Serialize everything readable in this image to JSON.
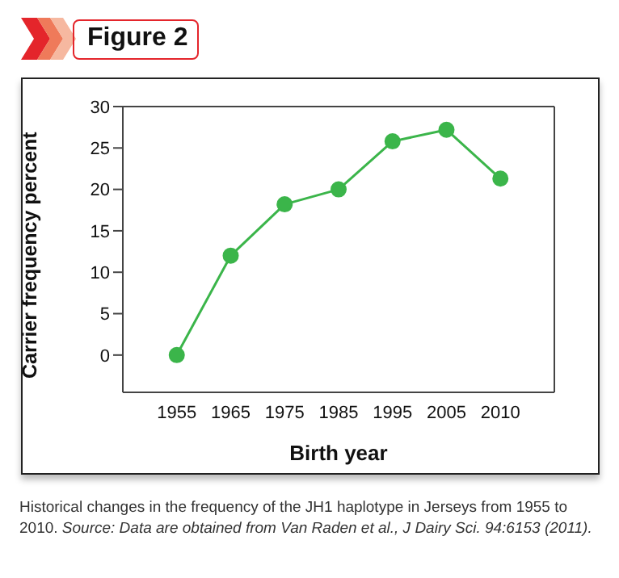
{
  "chart_data": {
    "type": "line",
    "title": "Figure 2",
    "xlabel": "Birth year",
    "ylabel": "Carrier frequency percent",
    "categories": [
      "1955",
      "1965",
      "1975",
      "1985",
      "1995",
      "2005",
      "2010"
    ],
    "values": [
      0,
      12,
      18.2,
      20,
      25.8,
      27.2,
      21.3
    ],
    "color": "#3bb54a",
    "marker": "circle",
    "ylim": [
      -4.5,
      30
    ],
    "yticks": [
      0,
      5,
      10,
      15,
      20,
      25,
      30
    ],
    "annotations": [
      "Historical changes in the frequency of the JH1 haplotype in Jerseys from 1955 to 2010.",
      "Source: Data are obtained from Van Raden et al., J Dairy Sci. 94:6153 (2011)."
    ]
  }
}
